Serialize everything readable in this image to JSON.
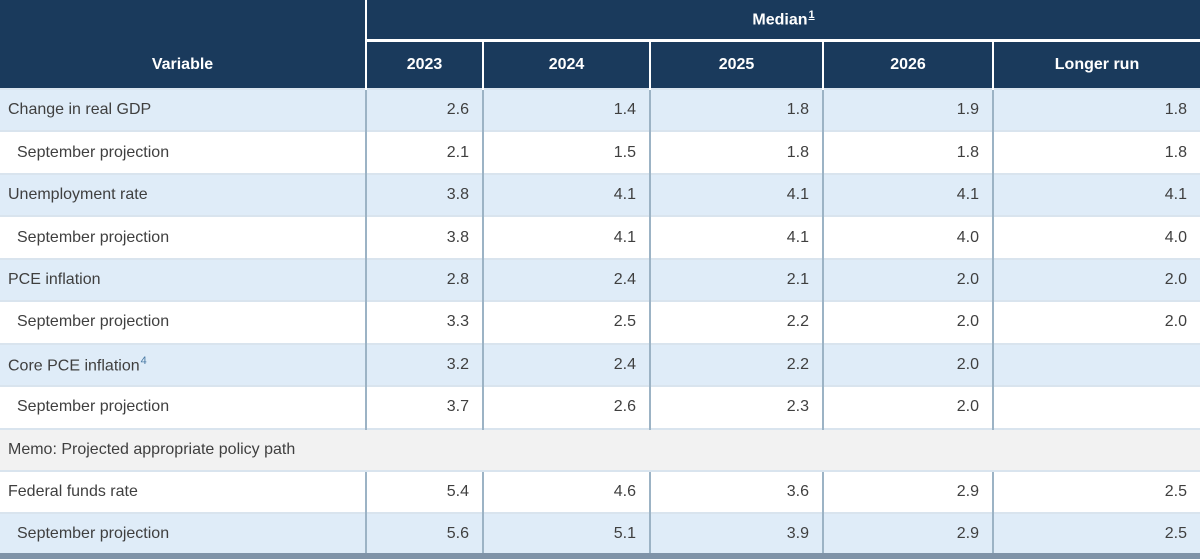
{
  "table": {
    "header": {
      "variable_label": "Variable",
      "median_label": "Median",
      "median_footnote": "1",
      "years": [
        "2023",
        "2024",
        "2025",
        "2026",
        "Longer run"
      ]
    },
    "rows": [
      {
        "label": "Change in real GDP",
        "indent": false,
        "values": [
          "2.6",
          "1.4",
          "1.8",
          "1.9",
          "1.8"
        ]
      },
      {
        "label": "September projection",
        "indent": true,
        "values": [
          "2.1",
          "1.5",
          "1.8",
          "1.8",
          "1.8"
        ]
      },
      {
        "label": "Unemployment rate",
        "indent": false,
        "values": [
          "3.8",
          "4.1",
          "4.1",
          "4.1",
          "4.1"
        ]
      },
      {
        "label": "September projection",
        "indent": true,
        "values": [
          "3.8",
          "4.1",
          "4.1",
          "4.0",
          "4.0"
        ]
      },
      {
        "label": "PCE inflation",
        "indent": false,
        "values": [
          "2.8",
          "2.4",
          "2.1",
          "2.0",
          "2.0"
        ]
      },
      {
        "label": "September projection",
        "indent": true,
        "values": [
          "3.3",
          "2.5",
          "2.2",
          "2.0",
          "2.0"
        ]
      },
      {
        "label": "Core PCE inflation",
        "sup": "4",
        "indent": false,
        "values": [
          "3.2",
          "2.4",
          "2.2",
          "2.0",
          ""
        ]
      },
      {
        "label": "September projection",
        "indent": true,
        "values": [
          "3.7",
          "2.6",
          "2.3",
          "2.0",
          ""
        ]
      },
      {
        "type": "memo",
        "label": "Memo: Projected appropriate policy path"
      },
      {
        "label": "Federal funds rate",
        "indent": false,
        "values": [
          "5.4",
          "4.6",
          "3.6",
          "2.9",
          "2.5"
        ]
      },
      {
        "label": "September projection",
        "indent": true,
        "values": [
          "5.6",
          "5.1",
          "3.9",
          "2.9",
          "2.5"
        ]
      }
    ],
    "colors": {
      "header_bg": "#1a3a5c",
      "header_text": "#ffffff",
      "row_shade_bg": "#dfecf8",
      "memo_bg": "#f2f2f2",
      "vertical_divider": "#9cb3c5",
      "horizontal_divider": "#d9e4ee",
      "bottom_bar": "#7f93a8",
      "body_text": "#3f3f3f",
      "footnote_link": "#4a7aa5"
    }
  },
  "chart_data": {
    "type": "table",
    "title": "Median1",
    "columns": [
      "Variable",
      "2023",
      "2024",
      "2025",
      "2026",
      "Longer run"
    ],
    "rows": [
      [
        "Change in real GDP",
        2.6,
        1.4,
        1.8,
        1.9,
        1.8
      ],
      [
        "September projection",
        2.1,
        1.5,
        1.8,
        1.8,
        1.8
      ],
      [
        "Unemployment rate",
        3.8,
        4.1,
        4.1,
        4.1,
        4.1
      ],
      [
        "September projection",
        3.8,
        4.1,
        4.1,
        4.0,
        4.0
      ],
      [
        "PCE inflation",
        2.8,
        2.4,
        2.1,
        2.0,
        2.0
      ],
      [
        "September projection",
        3.3,
        2.5,
        2.2,
        2.0,
        2.0
      ],
      [
        "Core PCE inflation",
        3.2,
        2.4,
        2.2,
        2.0,
        null
      ],
      [
        "September projection",
        3.7,
        2.6,
        2.3,
        2.0,
        null
      ],
      [
        "Memo: Projected appropriate policy path",
        null,
        null,
        null,
        null,
        null
      ],
      [
        "Federal funds rate",
        5.4,
        4.6,
        3.6,
        2.9,
        2.5
      ],
      [
        "September projection",
        5.6,
        5.1,
        3.9,
        2.9,
        2.5
      ]
    ]
  }
}
